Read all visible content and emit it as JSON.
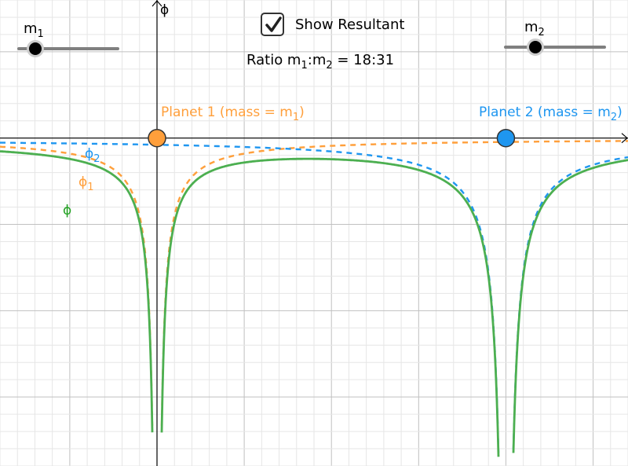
{
  "axis": {
    "y_label": "ϕ"
  },
  "sliders": {
    "m1": {
      "label": "m",
      "sub": "1",
      "value_fraction": 0.18
    },
    "m2": {
      "label": "m",
      "sub": "2",
      "value_fraction": 0.31
    }
  },
  "resultant": {
    "checked": true,
    "label": "Show Resultant"
  },
  "ratio": {
    "prefix": "Ratio m",
    "s1": "1",
    "mid": ":m",
    "s2": "2",
    "suffix": " = 18:31"
  },
  "planets": [
    {
      "name_prefix": "Planet 1 (mass = m",
      "name_sub": "1",
      "name_suffix": ")",
      "color": "#ff9f3b"
    },
    {
      "name_prefix": "Planet 2 (mass = m",
      "name_sub": "2",
      "name_suffix": ")",
      "color": "#1e96f0"
    }
  ],
  "curve_labels": {
    "phi2": {
      "text": "ϕ",
      "sub": "2",
      "color": "#1e96f0"
    },
    "phi1": {
      "text": "ϕ",
      "sub": "1",
      "color": "#ff9f3b"
    },
    "phi": {
      "text": "ϕ",
      "color": "#22a022"
    }
  },
  "colors": {
    "grid_minor": "#e6e6e6",
    "grid_major": "#c0c0c0",
    "axis": "#000000",
    "resultant": "#4caf50"
  },
  "chart_data": {
    "type": "line",
    "title": "",
    "xlabel": "",
    "ylabel": "ϕ",
    "xlim": [
      -1.8,
      5.4
    ],
    "ylim": [
      -3.8,
      1.6
    ],
    "planet_positions": [
      0.0,
      4.0
    ],
    "mass_ratio": [
      18,
      31
    ],
    "series": [
      {
        "name": "ϕ1",
        "formula": "-0.18/|x - 0|",
        "style": "dashed",
        "color": "#ff9f3b"
      },
      {
        "name": "ϕ2",
        "formula": "-0.31/|x - 4|",
        "style": "dashed",
        "color": "#1e96f0"
      },
      {
        "name": "ϕ",
        "formula": "ϕ1 + ϕ2",
        "style": "solid",
        "color": "#4caf50"
      }
    ]
  }
}
